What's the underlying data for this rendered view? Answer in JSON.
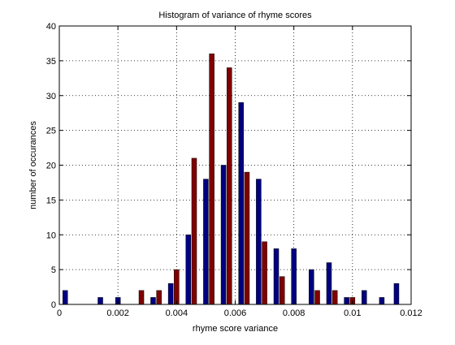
{
  "chart_data": {
    "type": "bar",
    "title": "Histogram of variance of rhyme scores",
    "xlabel": "rhyme score variance",
    "ylabel": "number of occurances",
    "xlim": [
      0,
      0.012
    ],
    "ylim": [
      0,
      40
    ],
    "grid": true,
    "xticks": [
      "0",
      "0.002",
      "0.004",
      "0.006",
      "0.008",
      "0.01",
      "0.012"
    ],
    "yticks": [
      "0",
      "5",
      "10",
      "15",
      "20",
      "25",
      "30",
      "35",
      "40"
    ],
    "series": [
      {
        "color": "#000080",
        "x": [
          0.0002,
          0.0014,
          0.002,
          0.0032,
          0.0038,
          0.0044,
          0.005,
          0.0056,
          0.0062,
          0.0068,
          0.0074,
          0.008,
          0.0086,
          0.0092,
          0.0098,
          0.0104,
          0.011,
          0.0115
        ],
        "values": [
          2,
          1,
          1,
          1,
          3,
          10,
          18,
          20,
          29,
          18,
          8,
          8,
          5,
          6,
          1,
          2,
          1,
          3
        ]
      },
      {
        "color": "#800000",
        "x": [
          0.0028,
          0.0034,
          0.004,
          0.0046,
          0.0052,
          0.0058,
          0.0064,
          0.007,
          0.0076,
          0.0082,
          0.0088,
          0.0094,
          0.01
        ],
        "values": [
          2,
          2,
          5,
          21,
          36,
          34,
          19,
          9,
          4,
          0,
          2,
          2,
          1
        ]
      }
    ]
  }
}
